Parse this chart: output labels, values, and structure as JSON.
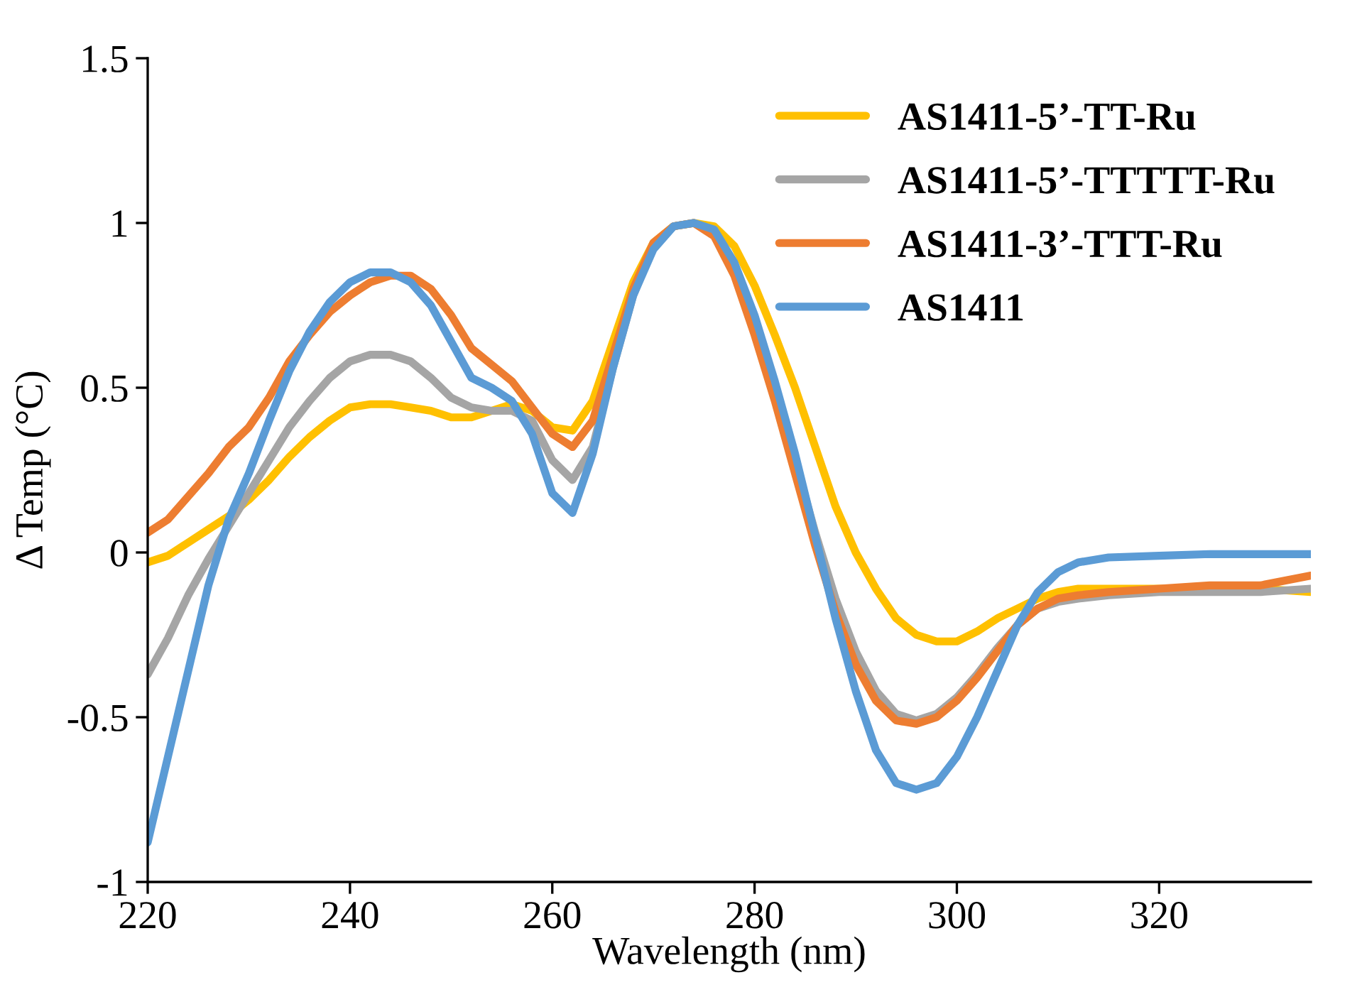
{
  "chart_data": {
    "type": "line",
    "xlabel": "Wavelength (nm)",
    "ylabel": "Δ Temp (°C)",
    "x": [
      220,
      222,
      224,
      226,
      228,
      230,
      232,
      234,
      236,
      238,
      240,
      242,
      244,
      246,
      248,
      250,
      252,
      254,
      256,
      258,
      260,
      262,
      264,
      266,
      268,
      270,
      272,
      274,
      276,
      278,
      280,
      282,
      284,
      286,
      288,
      290,
      292,
      294,
      296,
      298,
      300,
      302,
      304,
      306,
      308,
      310,
      312,
      315,
      320,
      325,
      330,
      335
    ],
    "series": [
      {
        "name": "AS1411-5’-TT-Ru",
        "color": "#ffc000",
        "values": [
          -0.03,
          -0.01,
          0.03,
          0.07,
          0.11,
          0.16,
          0.22,
          0.29,
          0.35,
          0.4,
          0.44,
          0.45,
          0.45,
          0.44,
          0.43,
          0.41,
          0.41,
          0.43,
          0.45,
          0.43,
          0.38,
          0.37,
          0.46,
          0.64,
          0.82,
          0.94,
          0.99,
          1.0,
          0.99,
          0.93,
          0.81,
          0.66,
          0.5,
          0.32,
          0.14,
          0.0,
          -0.11,
          -0.2,
          -0.25,
          -0.27,
          -0.27,
          -0.24,
          -0.2,
          -0.17,
          -0.14,
          -0.12,
          -0.11,
          -0.11,
          -0.11,
          -0.11,
          -0.11,
          -0.12
        ]
      },
      {
        "name": "AS1411-5’-TTTTT-Ru",
        "color": "#a5a5a5",
        "values": [
          -0.37,
          -0.26,
          -0.13,
          -0.02,
          0.08,
          0.18,
          0.28,
          0.38,
          0.46,
          0.53,
          0.58,
          0.6,
          0.6,
          0.58,
          0.53,
          0.47,
          0.44,
          0.43,
          0.43,
          0.4,
          0.28,
          0.22,
          0.32,
          0.56,
          0.78,
          0.93,
          0.99,
          1.0,
          0.97,
          0.87,
          0.7,
          0.5,
          0.28,
          0.06,
          -0.14,
          -0.3,
          -0.42,
          -0.49,
          -0.51,
          -0.49,
          -0.44,
          -0.37,
          -0.29,
          -0.22,
          -0.17,
          -0.15,
          -0.14,
          -0.13,
          -0.12,
          -0.12,
          -0.12,
          -0.11
        ]
      },
      {
        "name": "AS1411-3’-TTT-Ru",
        "color": "#ed7d31",
        "values": [
          0.06,
          0.1,
          0.17,
          0.24,
          0.32,
          0.38,
          0.47,
          0.58,
          0.66,
          0.73,
          0.78,
          0.82,
          0.84,
          0.84,
          0.8,
          0.72,
          0.62,
          0.57,
          0.52,
          0.44,
          0.36,
          0.32,
          0.4,
          0.6,
          0.8,
          0.94,
          0.99,
          1.0,
          0.96,
          0.84,
          0.66,
          0.46,
          0.24,
          0.02,
          -0.18,
          -0.34,
          -0.45,
          -0.51,
          -0.52,
          -0.5,
          -0.45,
          -0.38,
          -0.3,
          -0.22,
          -0.17,
          -0.14,
          -0.13,
          -0.12,
          -0.11,
          -0.1,
          -0.1,
          -0.07
        ]
      },
      {
        "name": "AS1411",
        "color": "#5b9bd5",
        "values": [
          -0.88,
          -0.62,
          -0.36,
          -0.1,
          0.1,
          0.24,
          0.4,
          0.55,
          0.67,
          0.76,
          0.82,
          0.85,
          0.85,
          0.82,
          0.75,
          0.64,
          0.53,
          0.5,
          0.46,
          0.36,
          0.18,
          0.12,
          0.3,
          0.56,
          0.78,
          0.92,
          0.99,
          1.0,
          0.98,
          0.88,
          0.72,
          0.52,
          0.3,
          0.05,
          -0.2,
          -0.42,
          -0.6,
          -0.7,
          -0.72,
          -0.7,
          -0.62,
          -0.5,
          -0.36,
          -0.22,
          -0.12,
          -0.06,
          -0.03,
          -0.015,
          -0.01,
          -0.005,
          -0.005,
          -0.005
        ]
      }
    ],
    "xlim": [
      220,
      335
    ],
    "xticks": [
      220,
      240,
      260,
      280,
      300,
      320
    ],
    "ylim": [
      -1,
      1.5
    ],
    "yticks": [
      -1,
      -0.5,
      0,
      0.5,
      1,
      1.5
    ],
    "legend": "top right",
    "grid": false,
    "marker": "none",
    "line_style": "solid"
  }
}
